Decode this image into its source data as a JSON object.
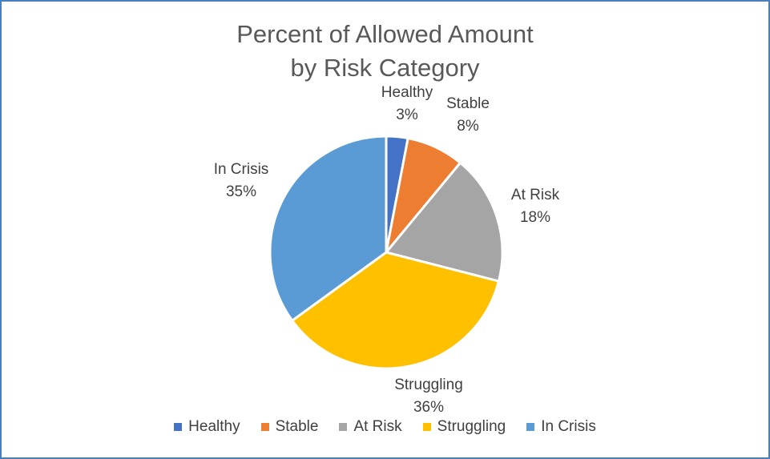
{
  "chart_data": {
    "type": "pie",
    "title_line1": "Percent of Allowed Amount",
    "title_line2": "by Risk Category",
    "categories": [
      "Healthy",
      "Stable",
      "At Risk",
      "Struggling",
      "In Crisis"
    ],
    "values": [
      3,
      8,
      18,
      36,
      35
    ],
    "labels": [
      "3%",
      "8%",
      "18%",
      "36%",
      "35%"
    ],
    "colors": [
      "#4472c4",
      "#ed7d31",
      "#a5a5a5",
      "#ffc000",
      "#5b9bd5"
    ],
    "legend_position": "bottom"
  }
}
